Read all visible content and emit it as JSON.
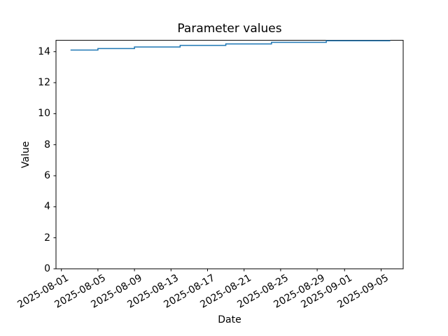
{
  "chart_data": {
    "type": "line",
    "line_style": "step-post",
    "title": "Parameter values",
    "xlabel": "Date",
    "ylabel": "Value",
    "grid": false,
    "legend": null,
    "background_color": "#ffffff",
    "line_color": "#1f77b4",
    "axis_color": "#000000",
    "ylim": [
      0,
      14.73
    ],
    "x_range_shown": [
      "2025-07-31",
      "2025-09-07"
    ],
    "y_ticks": [
      0,
      2,
      4,
      6,
      8,
      10,
      12,
      14
    ],
    "x_tick_labels": [
      "2025-08-01",
      "2025-08-05",
      "2025-08-09",
      "2025-08-13",
      "2025-08-17",
      "2025-08-21",
      "2025-08-25",
      "2025-08-29",
      "2025-09-01",
      "2025-09-05"
    ],
    "points": [
      {
        "date": "2025-08-02",
        "value": 14.1
      },
      {
        "date": "2025-08-05",
        "value": 14.2
      },
      {
        "date": "2025-08-09",
        "value": 14.3
      },
      {
        "date": "2025-08-14",
        "value": 14.4
      },
      {
        "date": "2025-08-19",
        "value": 14.5
      },
      {
        "date": "2025-08-24",
        "value": 14.6
      },
      {
        "date": "2025-08-30",
        "value": 14.7
      },
      {
        "date": "2025-09-06",
        "value": 14.7
      }
    ]
  }
}
